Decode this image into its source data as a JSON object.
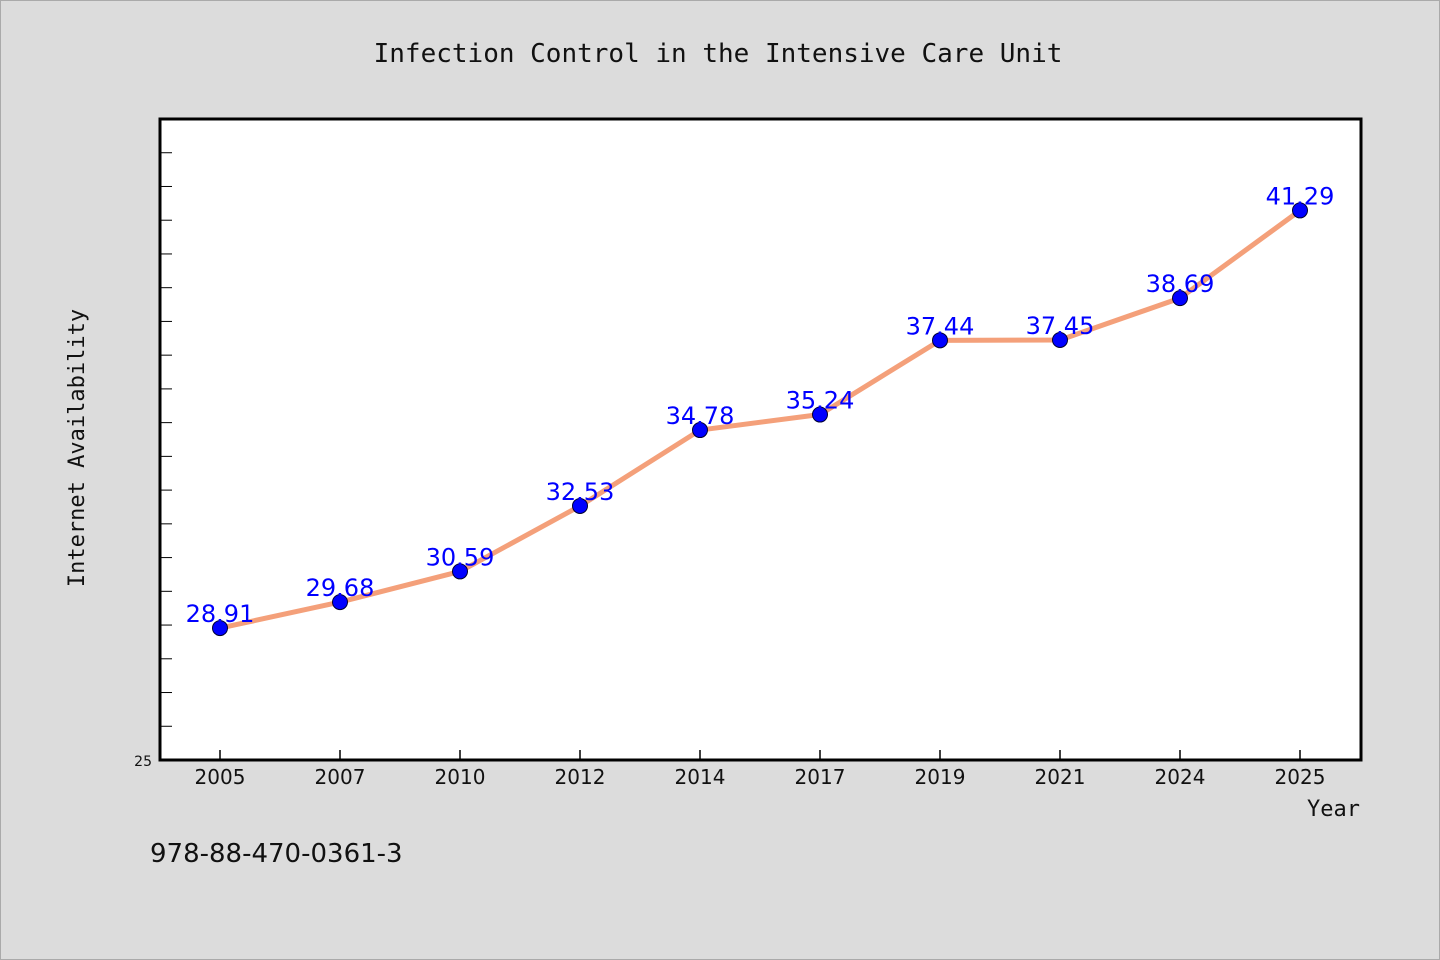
{
  "chart_data": {
    "type": "line",
    "title": "Infection Control in the Intensive Care Unit",
    "xlabel": "Year",
    "ylabel": "Internet Availability",
    "categories": [
      "2005",
      "2007",
      "2010",
      "2012",
      "2014",
      "2017",
      "2019",
      "2021",
      "2024",
      "2025"
    ],
    "series": [
      {
        "values": [
          28.91,
          29.68,
          30.59,
          32.53,
          34.78,
          35.24,
          37.44,
          37.45,
          38.69,
          41.29
        ],
        "line_color": "#f4a07a",
        "marker_color": "#0000ff"
      }
    ],
    "data_labels": [
      "28.91",
      "29.68",
      "30.59",
      "32.53",
      "34.78",
      "35.24",
      "37.44",
      "37.45",
      "38.69",
      "41.29"
    ],
    "ylim": [
      25,
      44
    ],
    "ytick_label": "25",
    "grid": false,
    "legend": "none"
  },
  "footer": {
    "isbn": "978-88-470-0361-3"
  },
  "colors": {
    "background": "#dcdcdc",
    "plot_background": "#ffffff",
    "axis": "#000000"
  }
}
